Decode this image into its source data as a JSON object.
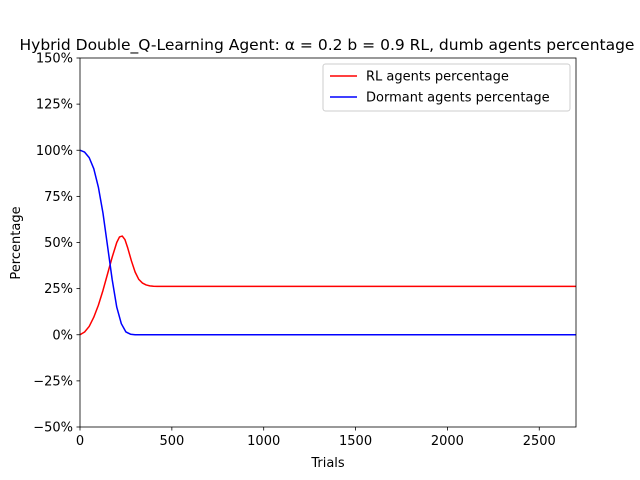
{
  "chart_data": {
    "type": "line",
    "title": "Hybrid Double_Q-Learning Agent: α = 0.2 b = 0.9 RL, dumb agents percentage",
    "xlabel": "Trials",
    "ylabel": "Percentage",
    "xlim": [
      0,
      2700
    ],
    "ylim": [
      -50,
      150
    ],
    "xticks": [
      0,
      500,
      1000,
      1500,
      2000,
      2500
    ],
    "xtick_labels": [
      "0",
      "500",
      "1000",
      "1500",
      "2000",
      "2500"
    ],
    "yticks": [
      -50,
      -25,
      0,
      25,
      50,
      75,
      100,
      125,
      150
    ],
    "ytick_labels": [
      "−50%",
      "−25%",
      "0%",
      "25%",
      "50%",
      "75%",
      "100%",
      "125%",
      "150%"
    ],
    "grid": false,
    "legend_position": "top-right",
    "series": [
      {
        "name": "RL agents percentage",
        "color": "#ff0000",
        "x": [
          0,
          25,
          50,
          75,
          100,
          125,
          150,
          175,
          200,
          215,
          230,
          245,
          260,
          280,
          300,
          320,
          340,
          360,
          380,
          400,
          420,
          450,
          500,
          700,
          1000,
          1500,
          2000,
          2500,
          2700
        ],
        "y": [
          0,
          1.5,
          4.5,
          9.5,
          16,
          24,
          33,
          42,
          50,
          53,
          53.5,
          51.5,
          47,
          40,
          34,
          30,
          28,
          27,
          26.5,
          26.3,
          26.2,
          26.2,
          26.2,
          26.2,
          26.2,
          26.2,
          26.2,
          26.2,
          26.2
        ]
      },
      {
        "name": "Dormant agents percentage",
        "color": "#0000ff",
        "x": [
          0,
          25,
          50,
          75,
          100,
          125,
          150,
          175,
          200,
          225,
          250,
          275,
          300,
          350,
          500,
          1000,
          1500,
          2000,
          2500,
          2700
        ],
        "y": [
          100,
          99,
          96,
          90,
          80,
          66,
          48,
          30,
          15,
          6,
          1.5,
          0.3,
          0,
          0,
          0,
          0,
          0,
          0,
          0,
          0
        ]
      }
    ]
  }
}
